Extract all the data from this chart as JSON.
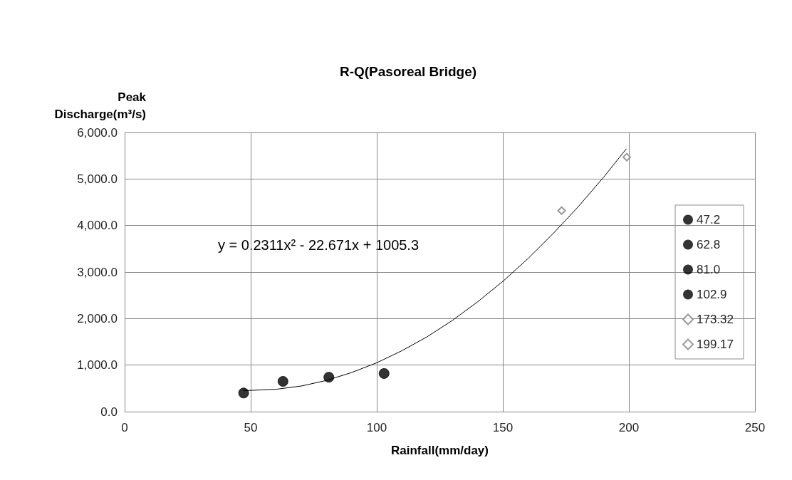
{
  "chart_data": {
    "type": "scatter",
    "title": "R-Q(Pasoreal Bridge)",
    "xlabel": "Rainfall(mm/day)",
    "ylabel": "Peak Discharge(m³/s)",
    "annotations": [
      "y = 0.2311x² - 22.671x + 1005.3"
    ],
    "xlim": [
      0,
      250
    ],
    "xticks": [
      0,
      50,
      100,
      150,
      200,
      250
    ],
    "ylim": [
      0,
      6000
    ],
    "yticks": [
      {
        "value": 0,
        "label": "0.0"
      },
      {
        "value": 1000,
        "label": "1,000.0"
      },
      {
        "value": 2000,
        "label": "2,000.0"
      },
      {
        "value": 3000,
        "label": "3,000.0"
      },
      {
        "value": 4000,
        "label": "4,000.0"
      },
      {
        "value": 5000,
        "label": "5,000.0"
      },
      {
        "value": 6000,
        "label": "6,000.0"
      }
    ],
    "grid": true,
    "legend": "right",
    "series": [
      {
        "name": "47.2",
        "color": "#000000",
        "marker": "circle",
        "x": [
          47.2
        ],
        "values": [
          400
        ]
      },
      {
        "name": "62.8",
        "color": "#000000",
        "marker": "circle",
        "x": [
          62.8
        ],
        "values": [
          650
        ]
      },
      {
        "name": "81.0",
        "color": "#000000",
        "marker": "circle",
        "x": [
          81.0
        ],
        "values": [
          740
        ]
      },
      {
        "name": "102.9",
        "color": "#000000",
        "marker": "circle",
        "x": [
          102.9
        ],
        "values": [
          820
        ]
      },
      {
        "name": "173.32",
        "color": "#7f7f7f",
        "marker": "diamond",
        "x": [
          173.32
        ],
        "values": [
          4320
        ]
      },
      {
        "name": "199.17",
        "color": "#7f7f7f",
        "marker": "diamond",
        "x": [
          199.17
        ],
        "values": [
          5470
        ]
      },
      {
        "type": "line",
        "color": "#000000",
        "marker": "none",
        "line_style": "solid",
        "x": [
          47,
          60,
          70,
          80,
          90,
          100,
          110,
          120,
          130,
          140,
          150,
          160,
          170,
          180,
          190,
          199
        ],
        "values": [
          450,
          480,
          550,
          670,
          840,
          1050,
          1310,
          1610,
          1960,
          2360,
          2800,
          3290,
          3830,
          4410,
          5040,
          5650
        ]
      }
    ]
  }
}
